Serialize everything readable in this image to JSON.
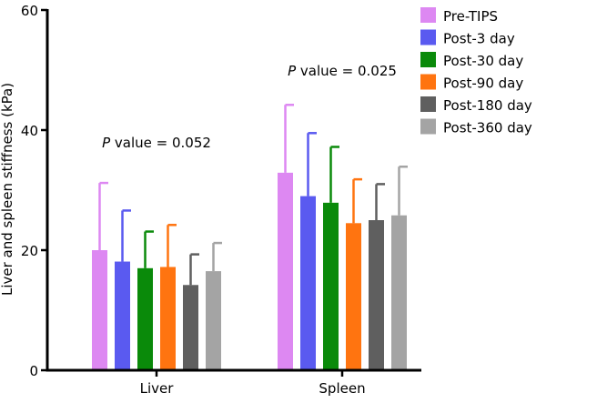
{
  "chart_data": {
    "type": "bar",
    "title": "",
    "xlabel": "",
    "ylabel": "Liver and spleen stiffness (kPa)",
    "ylim": [
      0,
      60
    ],
    "yticks": [
      0,
      20,
      40,
      60
    ],
    "grid": false,
    "legend_position": "top-right",
    "categories": [
      "Liver",
      "Spleen"
    ],
    "series": [
      {
        "name": "Pre-TIPS",
        "color": "#dd88f2",
        "values": [
          20.0,
          32.9
        ],
        "errors": [
          11.2,
          11.3
        ]
      },
      {
        "name": "Post-3 day",
        "color": "#5a5af0",
        "values": [
          18.1,
          29.0
        ],
        "errors": [
          8.5,
          10.5
        ]
      },
      {
        "name": "Post-30 day",
        "color": "#0a8a0a",
        "values": [
          17.0,
          27.9
        ],
        "errors": [
          6.1,
          9.3
        ]
      },
      {
        "name": "Post-90 day",
        "color": "#ff7410",
        "values": [
          17.2,
          24.5
        ],
        "errors": [
          7.0,
          7.3
        ]
      },
      {
        "name": "Post-180 day",
        "color": "#5f5f5f",
        "values": [
          14.2,
          25.0
        ],
        "errors": [
          5.1,
          6.0
        ]
      },
      {
        "name": "Post-360 day",
        "color": "#a4a4a4",
        "values": [
          16.5,
          25.8
        ],
        "errors": [
          4.7,
          8.1
        ]
      }
    ],
    "annotations": [
      {
        "group": "Liver",
        "italic": "P",
        "text": " value = 0.052",
        "y": 38
      },
      {
        "group": "Spleen",
        "italic": "P",
        "text": " value = 0.025",
        "y": 50
      }
    ]
  }
}
